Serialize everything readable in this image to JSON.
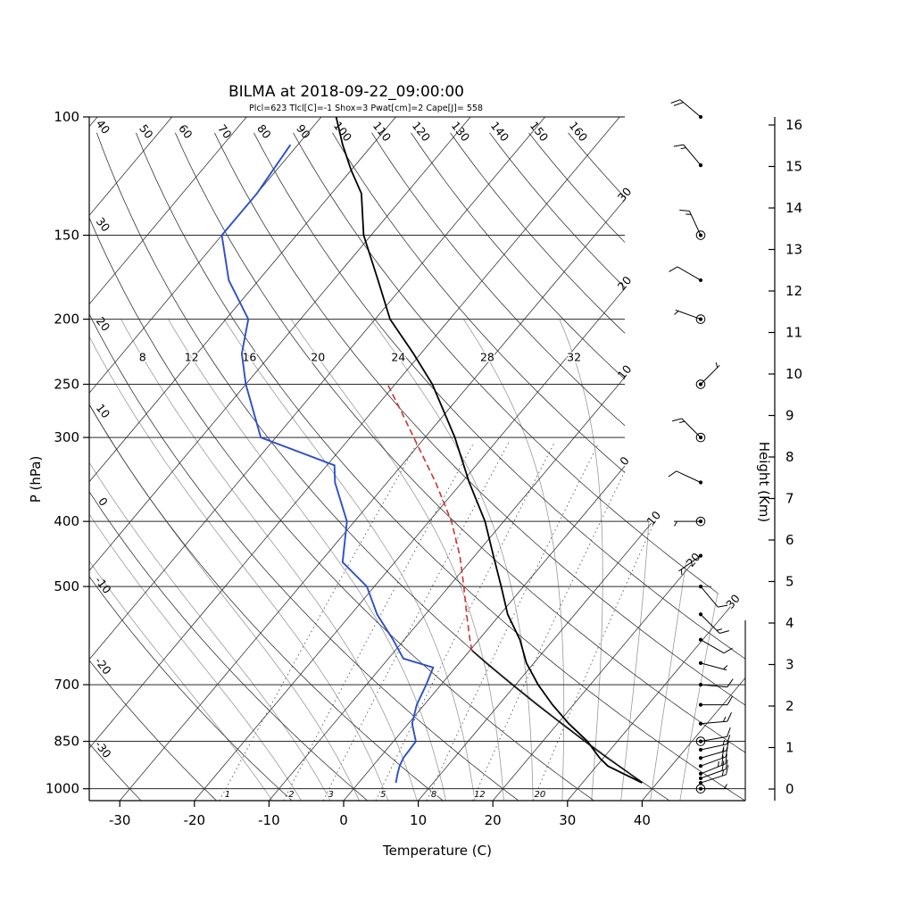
{
  "title": "BILMA at 2018-09-22_09:00:00",
  "params_line": "Plcl=623 Tlcl[C]=-1 Shox=3 Pwat[cm]=2 Cape[J]= 558",
  "axes": {
    "pressure_label": "P (hPa)",
    "temperature_label": "Temperature (C)",
    "height_label": "Height (Km)",
    "pressure_ticks": [
      100,
      150,
      200,
      250,
      300,
      400,
      500,
      700,
      850,
      1000
    ],
    "temperature_ticks": [
      -30,
      -20,
      -10,
      0,
      10,
      20,
      30,
      40
    ],
    "height_ticks": [
      0,
      1,
      2,
      3,
      4,
      5,
      6,
      7,
      8,
      9,
      10,
      11,
      12,
      13,
      14,
      15,
      16
    ]
  },
  "chart_data": {
    "type": "skewt-log-p",
    "station": "BILMA",
    "datetime": "2018-09-22_09:00:00",
    "indices": {
      "Plcl": 623,
      "Tlcl_C": -1,
      "Shox": 3,
      "Pwat_cm": 2,
      "Cape_J": 558
    },
    "isotherm_values": [
      -110,
      -100,
      -90,
      -80,
      -70,
      -60,
      -50,
      -40,
      -30,
      -20,
      -10,
      0,
      10,
      20,
      30,
      40
    ],
    "isotherm_labels": [
      -30,
      -20,
      -10,
      0,
      10,
      20,
      30
    ],
    "dry_adiabat_values": [
      -30,
      -20,
      -10,
      0,
      10,
      20,
      30,
      40,
      50,
      60,
      70,
      80,
      90,
      100,
      110,
      120,
      130,
      140,
      150,
      160
    ],
    "moist_adiabat_values": [
      -12,
      -8,
      -4,
      0,
      4,
      8,
      12,
      16,
      20,
      24,
      28,
      32,
      36,
      40,
      44
    ],
    "moist_adiabat_labels": [
      8,
      12,
      16,
      20,
      24,
      28,
      32
    ],
    "mixing_ratio_values": [
      1,
      2,
      3,
      5,
      8,
      12,
      20
    ],
    "temperature_profile": [
      [
        980,
        38
      ],
      [
        950,
        34.5
      ],
      [
        925,
        31.5
      ],
      [
        900,
        29.5
      ],
      [
        850,
        26
      ],
      [
        800,
        21.5
      ],
      [
        750,
        17.2
      ],
      [
        700,
        13
      ],
      [
        650,
        9
      ],
      [
        600,
        5.5
      ],
      [
        550,
        1
      ],
      [
        500,
        -3
      ],
      [
        450,
        -7.5
      ],
      [
        400,
        -12.5
      ],
      [
        350,
        -19
      ],
      [
        300,
        -26
      ],
      [
        250,
        -35
      ],
      [
        225,
        -41
      ],
      [
        200,
        -48
      ],
      [
        175,
        -54
      ],
      [
        150,
        -61
      ],
      [
        130,
        -66
      ],
      [
        120,
        -70
      ],
      [
        110,
        -74
      ],
      [
        100,
        -78
      ]
    ],
    "dewpoint_profile": [
      [
        980,
        5
      ],
      [
        950,
        4.2
      ],
      [
        925,
        3.6
      ],
      [
        900,
        3.2
      ],
      [
        850,
        3
      ],
      [
        800,
        0.5
      ],
      [
        750,
        -1
      ],
      [
        700,
        -2
      ],
      [
        660,
        -3
      ],
      [
        640,
        -8
      ],
      [
        600,
        -11.5
      ],
      [
        550,
        -16.5
      ],
      [
        500,
        -21
      ],
      [
        460,
        -27
      ],
      [
        400,
        -31
      ],
      [
        350,
        -37
      ],
      [
        330,
        -39
      ],
      [
        300,
        -52
      ],
      [
        250,
        -60
      ],
      [
        225,
        -64
      ],
      [
        200,
        -67
      ],
      [
        175,
        -74
      ],
      [
        150,
        -80
      ],
      [
        130,
        -80
      ],
      [
        110,
        -81
      ]
    ],
    "parcel_dry": [
      [
        980,
        38
      ],
      [
        950,
        35.3
      ],
      [
        900,
        30.5
      ],
      [
        850,
        25.6
      ],
      [
        800,
        20.5
      ],
      [
        750,
        15.1
      ],
      [
        700,
        9.5
      ],
      [
        650,
        3.6
      ],
      [
        623,
        0.3
      ]
    ],
    "parcel_moist": [
      [
        623,
        0.3
      ],
      [
        600,
        -1.2
      ],
      [
        550,
        -4.5
      ],
      [
        500,
        -8
      ],
      [
        450,
        -12
      ],
      [
        400,
        -17
      ],
      [
        350,
        -23.5
      ],
      [
        300,
        -31.5
      ],
      [
        275,
        -36
      ],
      [
        250,
        -41
      ]
    ],
    "lcl_pressure": 623,
    "wind_barbs": [
      {
        "p": 100,
        "s": 20,
        "d": 310
      },
      {
        "p": 118,
        "s": 15,
        "d": 320
      },
      {
        "p": 150,
        "s": 15,
        "d": 335,
        "c": true
      },
      {
        "p": 175,
        "s": 10,
        "d": 300
      },
      {
        "p": 200,
        "s": 5,
        "d": 290,
        "c": true
      },
      {
        "p": 250,
        "s": 5,
        "d": 45,
        "c": true
      },
      {
        "p": 300,
        "s": 15,
        "d": 315,
        "c": true
      },
      {
        "p": 350,
        "s": 10,
        "d": 295
      },
      {
        "p": 400,
        "s": 5,
        "d": 270,
        "c": true
      },
      {
        "p": 450,
        "s": 5,
        "d": 235
      },
      {
        "p": 500,
        "s": 10,
        "d": 140
      },
      {
        "p": 550,
        "s": 15,
        "d": 135
      },
      {
        "p": 600,
        "s": 10,
        "d": 120
      },
      {
        "p": 650,
        "s": 5,
        "d": 105
      },
      {
        "p": 700,
        "s": 10,
        "d": 95
      },
      {
        "p": 750,
        "s": 10,
        "d": 90
      },
      {
        "p": 800,
        "s": 15,
        "d": 85
      },
      {
        "p": 850,
        "s": 10,
        "d": 80,
        "c": true
      },
      {
        "p": 875,
        "s": 15,
        "d": 78
      },
      {
        "p": 900,
        "s": 15,
        "d": 74
      },
      {
        "p": 925,
        "s": 20,
        "d": 70
      },
      {
        "p": 950,
        "s": 25,
        "d": 68
      },
      {
        "p": 965,
        "s": 20,
        "d": 70
      },
      {
        "p": 980,
        "s": 15,
        "d": 72
      },
      {
        "p": 1000,
        "s": 3,
        "d": 90,
        "c": true
      }
    ],
    "colors": {
      "temperature": "#000000",
      "dewpoint": "#2b50c8",
      "parcel": "#cc3333",
      "params_text": "#b5502f",
      "moist_adiabat": "#9a9a9a",
      "mixing_ratio": "#555555",
      "grid": "#2a2a2a"
    }
  }
}
